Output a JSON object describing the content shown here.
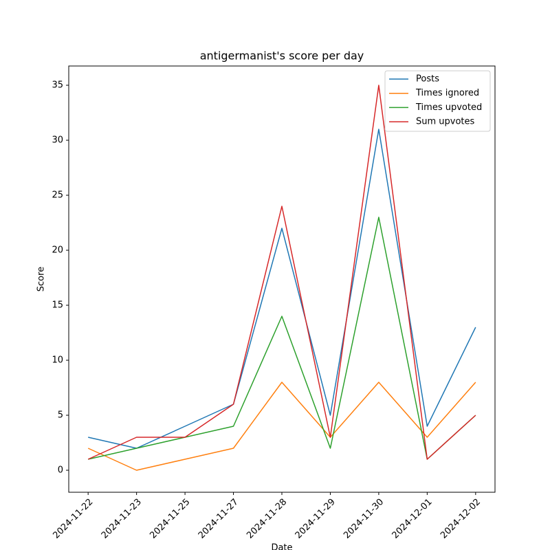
{
  "chart_data": {
    "type": "line",
    "title": "antigermanist's score per day",
    "x_label": "Date",
    "y_label": "Score",
    "categories": [
      "2024-11-22",
      "2024-11-23",
      "2024-11-25",
      "2024-11-27",
      "2024-11-28",
      "2024-11-29",
      "2024-11-30",
      "2024-12-01",
      "2024-12-02"
    ],
    "series": [
      {
        "name": "Posts",
        "color": "#1f77b4",
        "values": [
          3,
          2,
          4,
          6,
          22,
          5,
          31,
          4,
          13
        ]
      },
      {
        "name": "Times ignored",
        "color": "#ff7f0e",
        "values": [
          2,
          0,
          1,
          2,
          8,
          3,
          8,
          3,
          8
        ]
      },
      {
        "name": "Times upvoted",
        "color": "#2ca02c",
        "values": [
          1,
          2,
          3,
          4,
          14,
          2,
          23,
          1,
          5
        ]
      },
      {
        "name": "Sum upvotes",
        "color": "#d62728",
        "values": [
          1,
          3,
          3,
          6,
          24,
          3,
          35,
          1,
          5
        ]
      }
    ],
    "ylim": [
      -2,
      36.75
    ],
    "yticks": [
      0,
      5,
      10,
      15,
      20,
      25,
      30,
      35
    ],
    "legend": "upper right",
    "grid": false
  }
}
